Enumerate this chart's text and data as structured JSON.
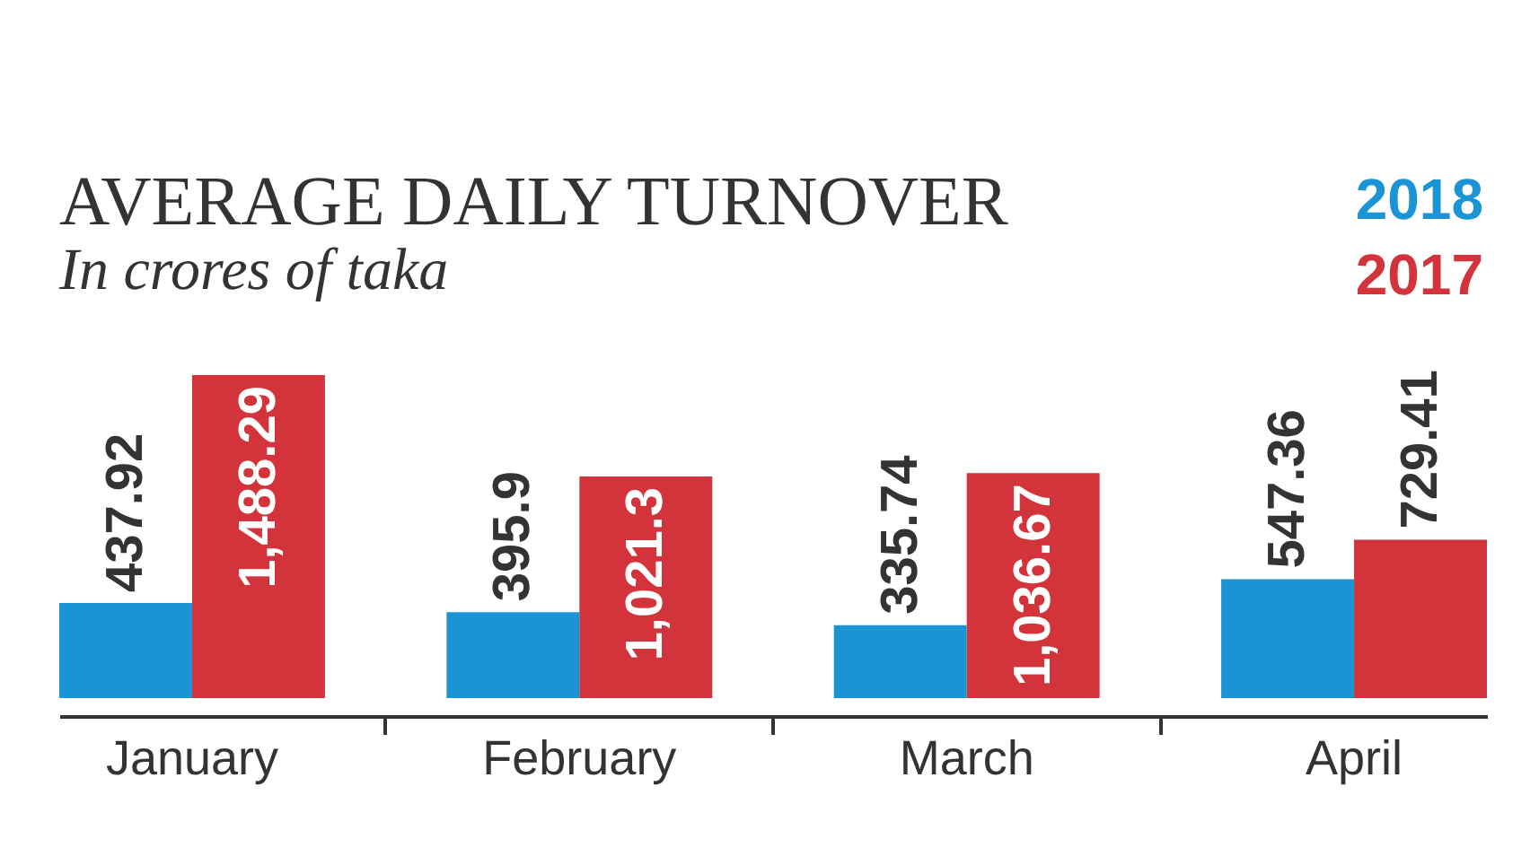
{
  "chart_data": {
    "type": "bar",
    "title": "AVERAGE DAILY TURNOVER",
    "subtitle": "In crores of taka",
    "categories": [
      "January",
      "February",
      "March",
      "April"
    ],
    "series": [
      {
        "name": "2018",
        "color": "#1a94d4",
        "values": [
          437.92,
          395.9,
          335.74,
          547.36
        ],
        "value_labels": [
          "437.92",
          "395.9",
          "335.74",
          "547.36"
        ]
      },
      {
        "name": "2017",
        "color": "#d3343c",
        "values": [
          1488.29,
          1021.3,
          1036.67,
          729.41
        ],
        "value_labels": [
          "1,488.29",
          "1,021.3",
          "1,036.67",
          "729.41"
        ]
      }
    ],
    "legend": "top right",
    "tick_labels": "x"
  }
}
